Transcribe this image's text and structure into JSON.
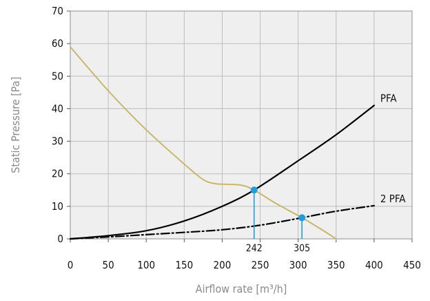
{
  "chart_data": {
    "type": "line",
    "xlabel": "Airflow rate [m³/h]",
    "ylabel": "Static Pressure [Pa]",
    "xlim": [
      0,
      450
    ],
    "ylim": [
      0,
      70
    ],
    "x_ticks": [
      0,
      50,
      100,
      150,
      200,
      250,
      300,
      350,
      400,
      450
    ],
    "y_ticks": [
      0,
      10,
      20,
      30,
      40,
      50,
      60,
      70
    ],
    "grid": true,
    "series": [
      {
        "name": "PFA",
        "style": "solid",
        "color": "#000000",
        "x": [
          0,
          50,
          100,
          150,
          200,
          242,
          300,
          350,
          400
        ],
        "y": [
          0,
          1,
          2.5,
          5.5,
          10,
          15,
          24,
          32,
          41
        ]
      },
      {
        "name": "2 PFA",
        "style": "dash-dot",
        "color": "#000000",
        "x": [
          0,
          50,
          100,
          150,
          200,
          250,
          305,
          350,
          400
        ],
        "y": [
          0,
          0.6,
          1.3,
          2,
          2.8,
          4.2,
          6.5,
          8.5,
          10.2
        ]
      },
      {
        "name": "",
        "style": "solid",
        "color": "#c8b76a",
        "x": [
          0,
          50,
          100,
          150,
          175,
          190,
          200,
          225,
          242,
          270,
          305,
          330,
          350
        ],
        "y": [
          59,
          45.5,
          33.5,
          23,
          18.2,
          17,
          16.8,
          16.5,
          15,
          11,
          6.5,
          3,
          0
        ]
      }
    ],
    "operating_points": [
      {
        "x": 242,
        "y": 15,
        "label": "242"
      },
      {
        "x": 305,
        "y": 6.5,
        "label": "305"
      }
    ],
    "colors": {
      "marker": "#1e9ee0",
      "grid": "#bdbdbd",
      "plot_bg": "#efefef"
    }
  }
}
